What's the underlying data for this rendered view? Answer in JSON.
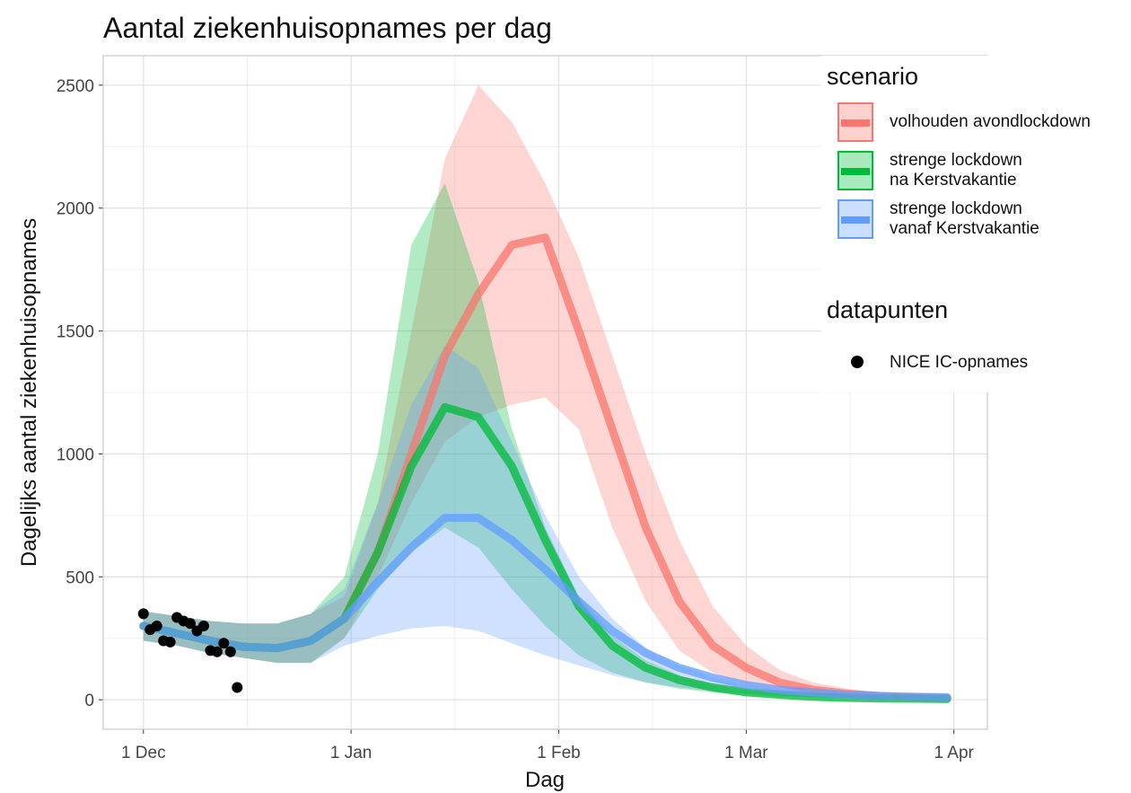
{
  "chart_data": {
    "type": "line",
    "title": "Aantal ziekenhuisopnames per dag",
    "xlabel": "Dag",
    "ylabel": "Dagelijks aantal ziekenhuisopnames",
    "legend_title": "scenario",
    "x": [
      0,
      5,
      10,
      15,
      20,
      25,
      30,
      35,
      40,
      45,
      50,
      55,
      60,
      65,
      70,
      75,
      80,
      85,
      90,
      95,
      100,
      105,
      110,
      115,
      120
    ],
    "series": [
      {
        "name": "volhouden avondlockdown",
        "color": "#F8766D",
        "values": [
          300,
          270,
          240,
          215,
          210,
          240,
          330,
          600,
          1000,
          1400,
          1650,
          1850,
          1880,
          1500,
          1100,
          700,
          400,
          220,
          130,
          70,
          40,
          25,
          15,
          10,
          8
        ],
        "lower": [
          240,
          220,
          190,
          170,
          150,
          150,
          250,
          500,
          800,
          1050,
          1150,
          1200,
          1230,
          1100,
          700,
          400,
          200,
          110,
          60,
          35,
          20,
          12,
          6,
          4,
          3
        ],
        "upper": [
          360,
          340,
          320,
          310,
          310,
          350,
          420,
          800,
          1500,
          2200,
          2500,
          2350,
          2100,
          1800,
          1400,
          1000,
          650,
          380,
          220,
          120,
          70,
          45,
          25,
          15,
          10
        ]
      },
      {
        "name": "strenge lockdown\n na Kerstvakantie",
        "color": "#00BA38",
        "values": [
          300,
          270,
          240,
          215,
          210,
          240,
          330,
          600,
          950,
          1190,
          1150,
          950,
          650,
          380,
          220,
          130,
          80,
          50,
          30,
          20,
          12,
          8,
          5,
          4,
          3
        ],
        "lower": [
          240,
          220,
          190,
          170,
          150,
          150,
          250,
          450,
          600,
          700,
          620,
          450,
          300,
          180,
          110,
          70,
          45,
          30,
          20,
          12,
          8,
          5,
          3,
          2,
          2
        ],
        "upper": [
          360,
          340,
          320,
          310,
          310,
          350,
          500,
          1000,
          1850,
          2100,
          1700,
          1100,
          700,
          420,
          260,
          160,
          100,
          60,
          40,
          25,
          15,
          10,
          6,
          5,
          4
        ]
      },
      {
        "name": "strenge lockdown\n vanaf Kerstvakantie",
        "color": "#619CFF",
        "values": [
          300,
          270,
          240,
          215,
          210,
          240,
          330,
          480,
          620,
          740,
          740,
          650,
          530,
          400,
          280,
          190,
          130,
          90,
          60,
          40,
          30,
          20,
          15,
          12,
          10
        ],
        "lower": [
          240,
          220,
          190,
          170,
          150,
          150,
          220,
          260,
          290,
          300,
          280,
          230,
          180,
          140,
          100,
          70,
          50,
          35,
          25,
          16,
          12,
          8,
          6,
          5,
          5
        ],
        "upper": [
          360,
          340,
          320,
          310,
          310,
          350,
          450,
          800,
          1200,
          1440,
          1350,
          1050,
          750,
          500,
          330,
          210,
          140,
          90,
          60,
          40,
          30,
          20,
          15,
          12,
          10
        ]
      }
    ],
    "points_legend_title": "datapunten",
    "points": {
      "name": "NICE IC-opnames",
      "color": "#000000",
      "x": [
        0,
        1,
        2,
        3,
        4,
        5,
        6,
        7,
        8,
        9,
        10,
        11,
        12,
        13,
        14
      ],
      "y": [
        350,
        285,
        300,
        240,
        235,
        335,
        320,
        310,
        280,
        300,
        200,
        195,
        230,
        195,
        50
      ]
    },
    "xlim": [
      -6,
      126
    ],
    "ylim": [
      -120,
      2620
    ],
    "xticks": [
      {
        "value": 0,
        "label": "1 Dec"
      },
      {
        "value": 31,
        "label": "1 Jan"
      },
      {
        "value": 62,
        "label": "1 Feb"
      },
      {
        "value": 90,
        "label": "1 Mar"
      },
      {
        "value": 121,
        "label": "1 Apr"
      }
    ],
    "yticks": [
      0,
      500,
      1000,
      1500,
      2000,
      2500
    ],
    "grid": true
  }
}
